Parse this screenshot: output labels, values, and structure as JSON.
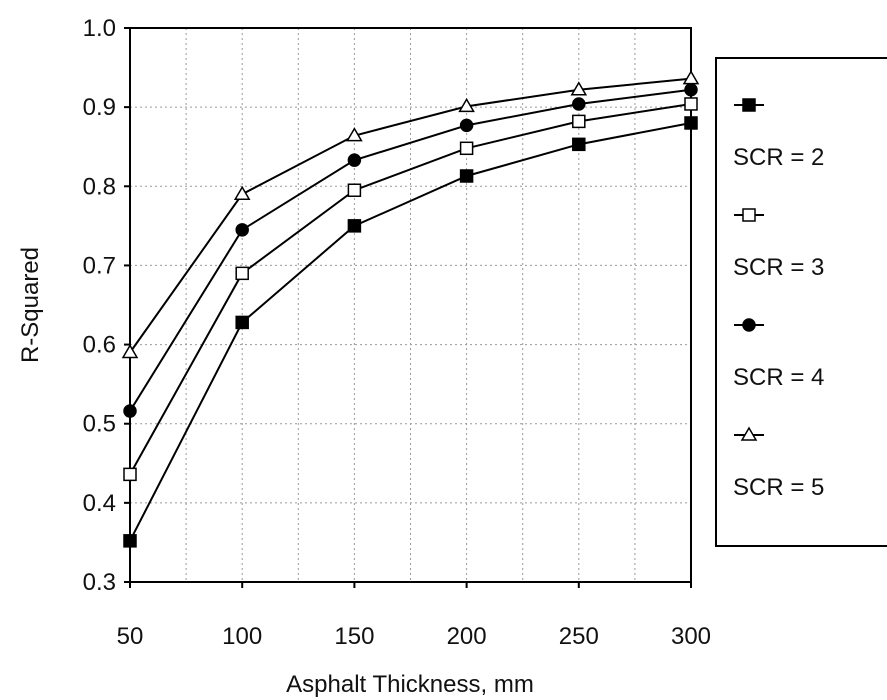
{
  "chart_data": {
    "type": "line",
    "title": "",
    "xlabel": "Asphalt Thickness, mm",
    "ylabel": "R-Squared",
    "x": [
      50,
      100,
      150,
      200,
      250,
      300
    ],
    "x_ticks": [
      "50",
      "100",
      "150",
      "200",
      "250",
      "300"
    ],
    "y_ticks": [
      "0.3",
      "0.4",
      "0.5",
      "0.6",
      "0.7",
      "0.8",
      "0.9",
      "1.0"
    ],
    "xlim": [
      50,
      300
    ],
    "ylim": [
      0.3,
      1.0
    ],
    "grid": true,
    "legend_position": "right",
    "series": [
      {
        "name": "SCR = 2",
        "marker": "filled-square",
        "values": [
          0.352,
          0.628,
          0.75,
          0.813,
          0.853,
          0.88
        ]
      },
      {
        "name": "SCR = 3",
        "marker": "open-square",
        "values": [
          0.436,
          0.69,
          0.795,
          0.848,
          0.882,
          0.904
        ]
      },
      {
        "name": "SCR = 4",
        "marker": "filled-circle",
        "values": [
          0.516,
          0.745,
          0.833,
          0.877,
          0.904,
          0.922
        ]
      },
      {
        "name": "SCR = 5",
        "marker": "open-triangle",
        "values": [
          0.59,
          0.79,
          0.864,
          0.901,
          0.922,
          0.936
        ]
      }
    ]
  }
}
